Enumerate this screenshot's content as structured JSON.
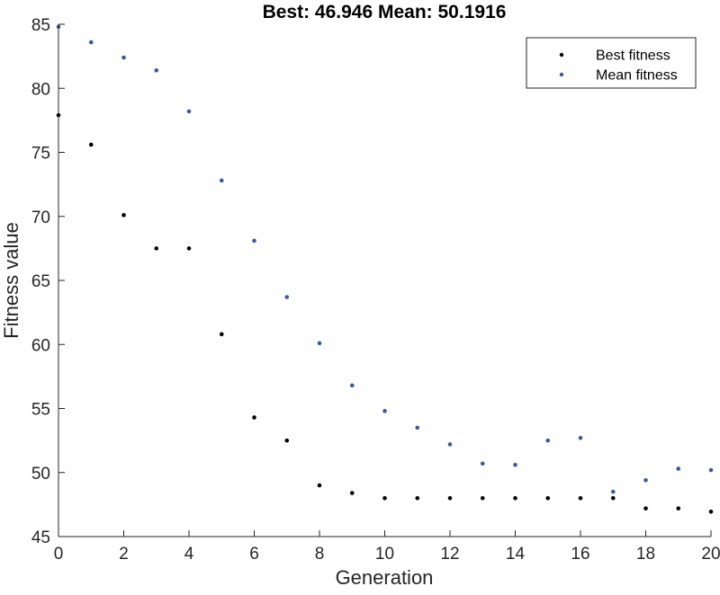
{
  "chart_data": {
    "type": "scatter",
    "title": "Best: 46.946 Mean: 50.1916",
    "xlabel": "Generation",
    "ylabel": "Fitness value",
    "xlim": [
      0,
      20
    ],
    "ylim": [
      45,
      85
    ],
    "xticks": [
      0,
      2,
      4,
      6,
      8,
      10,
      12,
      14,
      16,
      18,
      20
    ],
    "yticks": [
      45,
      50,
      55,
      60,
      65,
      70,
      75,
      80,
      85
    ],
    "grid": false,
    "legend_position": "top-right",
    "x": [
      0,
      1,
      2,
      3,
      4,
      5,
      6,
      7,
      8,
      9,
      10,
      11,
      12,
      13,
      14,
      15,
      16,
      17,
      18,
      19,
      20
    ],
    "series": [
      {
        "name": "Best fitness",
        "color": "#000000",
        "values": [
          77.9,
          75.6,
          70.1,
          67.5,
          67.5,
          60.8,
          54.3,
          52.5,
          49.0,
          48.4,
          48.0,
          48.0,
          48.0,
          48.0,
          48.0,
          48.0,
          48.0,
          48.0,
          47.2,
          47.2,
          46.946
        ]
      },
      {
        "name": "Mean fitness",
        "color": "#3c5a9a",
        "values": [
          84.8,
          83.6,
          82.4,
          81.4,
          78.2,
          72.8,
          68.1,
          63.7,
          60.1,
          56.8,
          54.8,
          53.5,
          52.2,
          50.7,
          50.6,
          52.5,
          52.7,
          48.5,
          49.4,
          50.3,
          50.1916
        ]
      }
    ]
  }
}
